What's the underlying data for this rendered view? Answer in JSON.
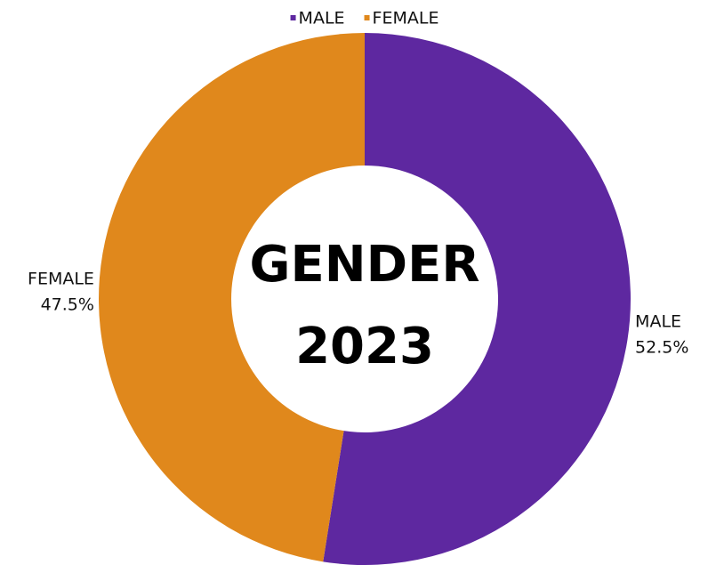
{
  "chart_data": {
    "type": "donut",
    "title": [
      "GENDER",
      "2023"
    ],
    "categories": [
      "MALE",
      "FEMALE"
    ],
    "values": [
      52.5,
      47.5
    ],
    "value_labels": [
      "52.5%",
      "47.5%"
    ],
    "colors": [
      "#5e28a0",
      "#e0881c"
    ],
    "legend": "top"
  }
}
